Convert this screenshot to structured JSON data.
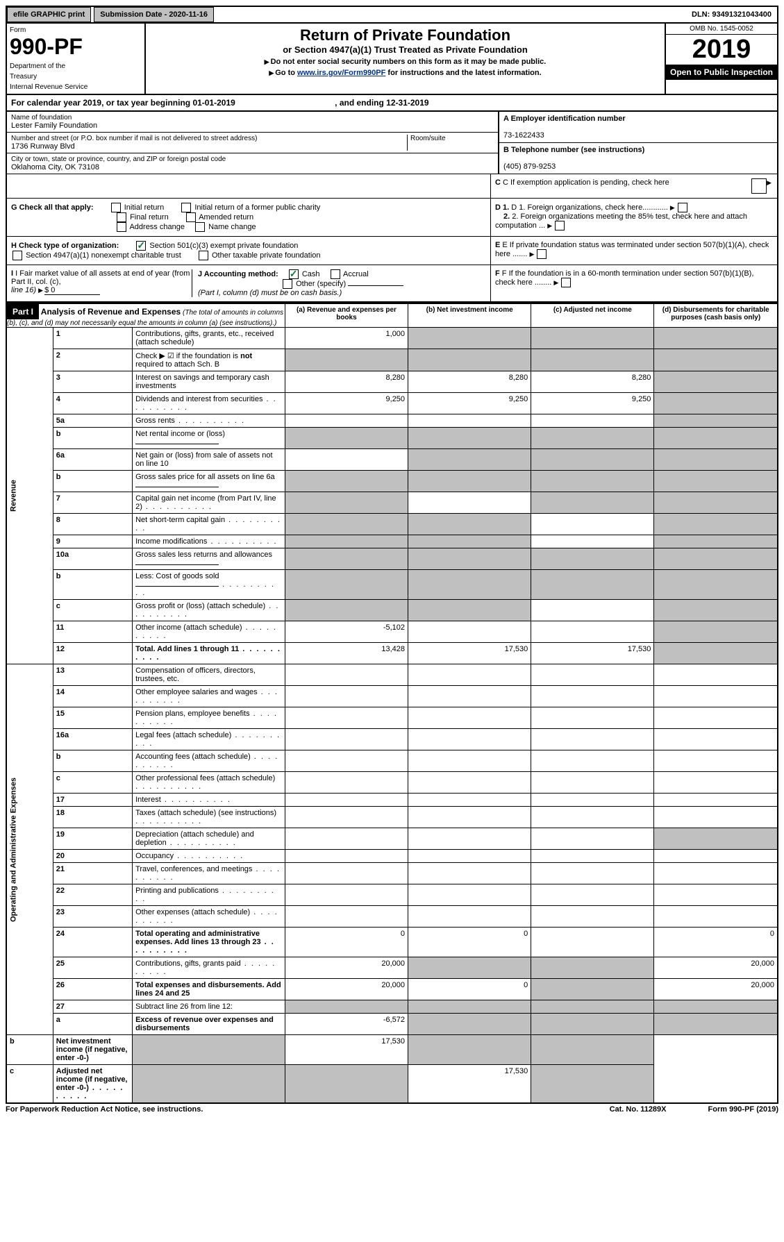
{
  "topbar": {
    "efile": "efile GRAPHIC print",
    "submission_label": "Submission Date - 2020-11-16",
    "dln": "DLN: 93491321043400"
  },
  "header": {
    "form_label": "Form",
    "form_number": "990-PF",
    "dept1": "Department of the",
    "dept2": "Treasury",
    "dept3": "Internal Revenue Service",
    "title": "Return of Private Foundation",
    "subtitle": "or Section 4947(a)(1) Trust Treated as Private Foundation",
    "instr1": "Do not enter social security numbers on this form as it may be made public.",
    "instr2_pre": "Go to ",
    "instr2_link": "www.irs.gov/Form990PF",
    "instr2_post": " for instructions and the latest information.",
    "omb": "OMB No. 1545-0052",
    "year": "2019",
    "open": "Open to Public Inspection"
  },
  "calyear": {
    "text": "For calendar year 2019, or tax year beginning 01-01-2019",
    "ending": ", and ending 12-31-2019"
  },
  "foundation": {
    "name_label": "Name of foundation",
    "name": "Lester Family Foundation",
    "addr_label": "Number and street (or P.O. box number if mail is not delivered to street address)",
    "addr": "1736 Runway Blvd",
    "room_label": "Room/suite",
    "city_label": "City or town, state or province, country, and ZIP or foreign postal code",
    "city": "Oklahoma City, OK  73108"
  },
  "right_info": {
    "a_label": "A Employer identification number",
    "a_value": "73-1622433",
    "b_label": "B Telephone number (see instructions)",
    "b_value": "(405) 879-9253",
    "c_label": "C If exemption application is pending, check here",
    "d1_label": "D 1. Foreign organizations, check here............",
    "d2_label": "2. Foreign organizations meeting the 85% test, check here and attach computation ...",
    "e_label": "E  If private foundation status was terminated under section 507(b)(1)(A), check here .......",
    "f_label": "F  If the foundation is in a 60-month termination under section 507(b)(1)(B), check here ........"
  },
  "g": {
    "label": "G Check all that apply:",
    "initial": "Initial return",
    "initial_former": "Initial return of a former public charity",
    "final": "Final return",
    "amended": "Amended return",
    "addr_change": "Address change",
    "name_change": "Name change"
  },
  "h": {
    "label": "H Check type of organization:",
    "501c3": "Section 501(c)(3) exempt private foundation",
    "4947": "Section 4947(a)(1) nonexempt charitable trust",
    "other_taxable": "Other taxable private foundation"
  },
  "i": {
    "label": "I Fair market value of all assets at end of year (from Part II, col. (c),",
    "line16": "line 16)",
    "value": "$  0"
  },
  "j": {
    "label": "J Accounting method:",
    "cash": "Cash",
    "accrual": "Accrual",
    "other": "Other (specify)",
    "note": "(Part I, column (d) must be on cash basis.)"
  },
  "part1": {
    "header": "Part I",
    "title": "Analysis of Revenue and Expenses",
    "title_note": "(The total of amounts in columns (b), (c), and (d) may not necessarily equal the amounts in column (a) (see instructions).)",
    "col_a": "(a)   Revenue and expenses per books",
    "col_b": "(b)  Net investment income",
    "col_c": "(c)  Adjusted net income",
    "col_d": "(d)  Disbursements for charitable purposes (cash basis only)"
  },
  "revenue_label": "Revenue",
  "expenses_label": "Operating and Administrative Expenses",
  "rows": [
    {
      "n": "1",
      "desc": "Contributions, gifts, grants, etc., received (attach schedule)",
      "a": "1,000",
      "b": "",
      "c": "",
      "d": "",
      "b_grey": true,
      "c_grey": true,
      "d_grey": true
    },
    {
      "n": "2",
      "desc": "Check ▶ ☑ if the foundation is not required to attach Sch. B",
      "a": "",
      "b": "",
      "c": "",
      "d": "",
      "a_grey": true,
      "b_grey": true,
      "c_grey": true,
      "d_grey": true,
      "bold_not": true
    },
    {
      "n": "3",
      "desc": "Interest on savings and temporary cash investments",
      "a": "8,280",
      "b": "8,280",
      "c": "8,280",
      "d": "",
      "d_grey": true
    },
    {
      "n": "4",
      "desc": "Dividends and interest from securities",
      "a": "9,250",
      "b": "9,250",
      "c": "9,250",
      "d": "",
      "d_grey": true,
      "dots": true
    },
    {
      "n": "5a",
      "desc": "Gross rents",
      "a": "",
      "b": "",
      "c": "",
      "d": "",
      "d_grey": true,
      "dots": true
    },
    {
      "n": "b",
      "desc": "Net rental income or (loss)",
      "a": "",
      "b": "",
      "c": "",
      "d": "",
      "a_grey": true,
      "b_grey": true,
      "c_grey": true,
      "d_grey": true,
      "underline": true
    },
    {
      "n": "6a",
      "desc": "Net gain or (loss) from sale of assets not on line 10",
      "a": "",
      "b": "",
      "c": "",
      "d": "",
      "b_grey": true,
      "c_grey": true,
      "d_grey": true
    },
    {
      "n": "b",
      "desc": "Gross sales price for all assets on line 6a",
      "a": "",
      "b": "",
      "c": "",
      "d": "",
      "a_grey": true,
      "b_grey": true,
      "c_grey": true,
      "d_grey": true,
      "underline": true
    },
    {
      "n": "7",
      "desc": "Capital gain net income (from Part IV, line 2)",
      "a": "",
      "b": "",
      "c": "",
      "d": "",
      "a_grey": true,
      "c_grey": true,
      "d_grey": true,
      "dots": true
    },
    {
      "n": "8",
      "desc": "Net short-term capital gain",
      "a": "",
      "b": "",
      "c": "",
      "d": "",
      "a_grey": true,
      "b_grey": true,
      "d_grey": true,
      "dots": true
    },
    {
      "n": "9",
      "desc": "Income modifications",
      "a": "",
      "b": "",
      "c": "",
      "d": "",
      "a_grey": true,
      "b_grey": true,
      "d_grey": true,
      "dots": true
    },
    {
      "n": "10a",
      "desc": "Gross sales less returns and allowances",
      "a": "",
      "b": "",
      "c": "",
      "d": "",
      "a_grey": true,
      "b_grey": true,
      "c_grey": true,
      "d_grey": true,
      "underline": true
    },
    {
      "n": "b",
      "desc": "Less: Cost of goods sold",
      "a": "",
      "b": "",
      "c": "",
      "d": "",
      "a_grey": true,
      "b_grey": true,
      "c_grey": true,
      "d_grey": true,
      "underline": true,
      "dots": true
    },
    {
      "n": "c",
      "desc": "Gross profit or (loss) (attach schedule)",
      "a": "",
      "b": "",
      "c": "",
      "d": "",
      "a_grey": true,
      "b_grey": true,
      "d_grey": true,
      "dots": true
    },
    {
      "n": "11",
      "desc": "Other income (attach schedule)",
      "a": "-5,102",
      "b": "",
      "c": "",
      "d": "",
      "d_grey": true,
      "dots": true
    },
    {
      "n": "12",
      "desc": "Total. Add lines 1 through 11",
      "a": "13,428",
      "b": "17,530",
      "c": "17,530",
      "d": "",
      "d_grey": true,
      "bold": true,
      "dots": true
    },
    {
      "n": "13",
      "desc": "Compensation of officers, directors, trustees, etc.",
      "a": "",
      "b": "",
      "c": "",
      "d": ""
    },
    {
      "n": "14",
      "desc": "Other employee salaries and wages",
      "a": "",
      "b": "",
      "c": "",
      "d": "",
      "dots": true
    },
    {
      "n": "15",
      "desc": "Pension plans, employee benefits",
      "a": "",
      "b": "",
      "c": "",
      "d": "",
      "dots": true
    },
    {
      "n": "16a",
      "desc": "Legal fees (attach schedule)",
      "a": "",
      "b": "",
      "c": "",
      "d": "",
      "dots": true
    },
    {
      "n": "b",
      "desc": "Accounting fees (attach schedule)",
      "a": "",
      "b": "",
      "c": "",
      "d": "",
      "dots": true
    },
    {
      "n": "c",
      "desc": "Other professional fees (attach schedule)",
      "a": "",
      "b": "",
      "c": "",
      "d": "",
      "dots": true
    },
    {
      "n": "17",
      "desc": "Interest",
      "a": "",
      "b": "",
      "c": "",
      "d": "",
      "dots": true
    },
    {
      "n": "18",
      "desc": "Taxes (attach schedule) (see instructions)",
      "a": "",
      "b": "",
      "c": "",
      "d": "",
      "dots": true
    },
    {
      "n": "19",
      "desc": "Depreciation (attach schedule) and depletion",
      "a": "",
      "b": "",
      "c": "",
      "d": "",
      "d_grey": true,
      "dots": true
    },
    {
      "n": "20",
      "desc": "Occupancy",
      "a": "",
      "b": "",
      "c": "",
      "d": "",
      "dots": true
    },
    {
      "n": "21",
      "desc": "Travel, conferences, and meetings",
      "a": "",
      "b": "",
      "c": "",
      "d": "",
      "dots": true
    },
    {
      "n": "22",
      "desc": "Printing and publications",
      "a": "",
      "b": "",
      "c": "",
      "d": "",
      "dots": true
    },
    {
      "n": "23",
      "desc": "Other expenses (attach schedule)",
      "a": "",
      "b": "",
      "c": "",
      "d": "",
      "dots": true
    },
    {
      "n": "24",
      "desc": "Total operating and administrative expenses. Add lines 13 through 23",
      "a": "0",
      "b": "0",
      "c": "",
      "d": "0",
      "bold": true,
      "dots": true
    },
    {
      "n": "25",
      "desc": "Contributions, gifts, grants paid",
      "a": "20,000",
      "b": "",
      "c": "",
      "d": "20,000",
      "b_grey": true,
      "c_grey": true,
      "dots": true
    },
    {
      "n": "26",
      "desc": "Total expenses and disbursements. Add lines 24 and 25",
      "a": "20,000",
      "b": "0",
      "c": "",
      "d": "20,000",
      "c_grey": true,
      "bold": true
    },
    {
      "n": "27",
      "desc": "Subtract line 26 from line 12:",
      "a": "",
      "b": "",
      "c": "",
      "d": "",
      "a_grey": true,
      "b_grey": true,
      "c_grey": true,
      "d_grey": true
    },
    {
      "n": "a",
      "desc": "Excess of revenue over expenses and disbursements",
      "a": "-6,572",
      "b": "",
      "c": "",
      "d": "",
      "b_grey": true,
      "c_grey": true,
      "d_grey": true,
      "bold": true
    },
    {
      "n": "b",
      "desc": "Net investment income (if negative, enter -0-)",
      "a": "",
      "b": "17,530",
      "c": "",
      "d": "",
      "a_grey": true,
      "c_grey": true,
      "d_grey": true,
      "bold": true
    },
    {
      "n": "c",
      "desc": "Adjusted net income (if negative, enter -0-)",
      "a": "",
      "b": "",
      "c": "17,530",
      "d": "",
      "a_grey": true,
      "b_grey": true,
      "d_grey": true,
      "bold": true,
      "dots": true
    }
  ],
  "footer": {
    "left": "For Paperwork Reduction Act Notice, see instructions.",
    "center": "Cat. No. 11289X",
    "right": "Form 990-PF (2019)"
  }
}
